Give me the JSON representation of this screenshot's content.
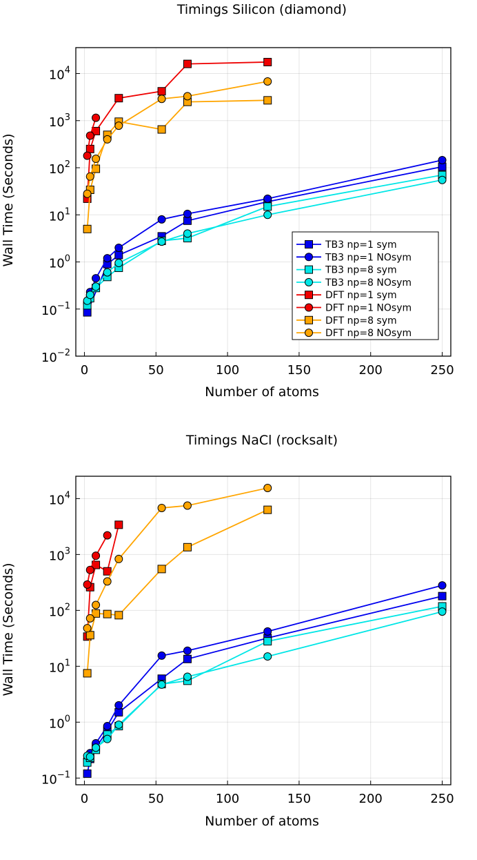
{
  "chart_data": [
    {
      "type": "line",
      "title": "Timings Silicon (diamond)",
      "xlabel": "Number of atoms",
      "ylabel": "Wall Time (Seconds)",
      "yscale": "log",
      "xlim": [
        -6,
        256
      ],
      "ylim_exp": [
        -2,
        4.55
      ],
      "xticks": [
        0,
        50,
        100,
        150,
        200,
        250
      ],
      "yticks_exp": [
        -2,
        -1,
        0,
        1,
        2,
        3,
        4
      ],
      "legend_position": "bottom-right",
      "series": [
        {
          "name": "TB3 np=1 sym",
          "color": "#0000ee",
          "marker": "square",
          "x": [
            2,
            16,
            24,
            54,
            72,
            128,
            250
          ],
          "y": [
            0.085,
            0.9,
            1.4,
            3.5,
            7.5,
            19,
            105
          ]
        },
        {
          "name": "TB3 np=1 NOsym",
          "color": "#0000ee",
          "marker": "circle",
          "x": [
            2,
            4,
            8,
            16,
            24,
            54,
            72,
            128,
            250
          ],
          "y": [
            0.13,
            0.23,
            0.45,
            1.2,
            2.0,
            8.0,
            10.5,
            22,
            145
          ]
        },
        {
          "name": "TB3 np=8 sym",
          "color": "#00e6e6",
          "marker": "square",
          "x": [
            2,
            4,
            8,
            16,
            24,
            54,
            72,
            128,
            250
          ],
          "y": [
            0.12,
            0.17,
            0.28,
            0.48,
            0.75,
            2.8,
            3.2,
            15,
            70
          ]
        },
        {
          "name": "TB3 np=8 NOsym",
          "color": "#00e6e6",
          "marker": "circle",
          "x": [
            2,
            4,
            8,
            16,
            24,
            54,
            72,
            128,
            250
          ],
          "y": [
            0.15,
            0.2,
            0.3,
            0.6,
            0.95,
            2.7,
            4.0,
            10,
            55
          ]
        },
        {
          "name": "DFT np=1 sym",
          "color": "#ee0000",
          "marker": "square",
          "x": [
            2,
            4,
            8,
            24,
            54,
            72,
            128
          ],
          "y": [
            22,
            250,
            600,
            3000,
            4200,
            16000,
            17500
          ]
        },
        {
          "name": "DFT np=1 NOsym",
          "color": "#ee0000",
          "marker": "circle",
          "x": [
            2,
            4,
            8
          ],
          "y": [
            180,
            480,
            1150
          ]
        },
        {
          "name": "DFT np=8 sym",
          "color": "#ffa500",
          "marker": "square",
          "x": [
            2,
            4,
            8,
            16,
            24,
            54,
            72,
            128
          ],
          "y": [
            5,
            34,
            95,
            500,
            950,
            650,
            2500,
            2700
          ]
        },
        {
          "name": "DFT np=8 NOsym",
          "color": "#ffa500",
          "marker": "circle",
          "x": [
            2,
            4,
            8,
            16,
            24,
            54,
            72,
            128
          ],
          "y": [
            28,
            65,
            155,
            400,
            780,
            2900,
            3300,
            6800
          ]
        }
      ]
    },
    {
      "type": "line",
      "title": "Timings NaCl (rocksalt)",
      "xlabel": "Number of atoms",
      "ylabel": "Wall Time (Seconds)",
      "yscale": "log",
      "xlim": [
        -6,
        256
      ],
      "ylim_exp": [
        -1.12,
        4.4
      ],
      "xticks": [
        0,
        50,
        100,
        150,
        200,
        250
      ],
      "yticks_exp": [
        -1,
        0,
        1,
        2,
        3,
        4
      ],
      "series": [
        {
          "name": "TB3 np=1 sym",
          "color": "#0000ee",
          "marker": "square",
          "x": [
            2,
            4,
            8,
            16,
            24,
            54,
            72,
            128,
            250
          ],
          "y": [
            0.12,
            0.22,
            0.35,
            0.7,
            1.5,
            6.0,
            13.5,
            32,
            180
          ]
        },
        {
          "name": "TB3 np=1 NOsym",
          "color": "#0000ee",
          "marker": "circle",
          "x": [
            2,
            4,
            8,
            16,
            24,
            54,
            72,
            128,
            250
          ],
          "y": [
            0.22,
            0.28,
            0.42,
            0.85,
            2.0,
            15.5,
            19,
            42,
            280
          ]
        },
        {
          "name": "TB3 np=8 sym",
          "color": "#00e6e6",
          "marker": "square",
          "x": [
            2,
            4,
            8,
            16,
            24,
            54,
            72,
            128,
            250
          ],
          "y": [
            0.19,
            0.23,
            0.32,
            0.6,
            0.85,
            4.8,
            5.5,
            28,
            118
          ]
        },
        {
          "name": "TB3 np=8 NOsym",
          "color": "#00e6e6",
          "marker": "circle",
          "x": [
            2,
            4,
            8,
            16,
            24,
            54,
            72,
            128,
            250
          ],
          "y": [
            0.25,
            0.24,
            0.35,
            0.5,
            0.9,
            4.7,
            6.5,
            15,
            95
          ]
        },
        {
          "name": "DFT np=1 sym",
          "color": "#ee0000",
          "marker": "square",
          "x": [
            2,
            4,
            8,
            16,
            24
          ],
          "y": [
            34,
            260,
            650,
            500,
            3400
          ]
        },
        {
          "name": "DFT np=1 NOsym",
          "color": "#ee0000",
          "marker": "circle",
          "x": [
            2,
            4,
            8,
            16
          ],
          "y": [
            290,
            530,
            950,
            2200
          ]
        },
        {
          "name": "DFT np=8 sym",
          "color": "#ffa500",
          "marker": "square",
          "x": [
            2,
            4,
            8,
            16,
            24,
            54,
            72,
            128
          ],
          "y": [
            7.5,
            36,
            88,
            86,
            82,
            550,
            1350,
            6300
          ]
        },
        {
          "name": "DFT np=8 NOsym",
          "color": "#ffa500",
          "marker": "circle",
          "x": [
            2,
            4,
            8,
            16,
            24,
            54,
            72,
            128
          ],
          "y": [
            48,
            72,
            125,
            330,
            830,
            6800,
            7500,
            15500
          ]
        }
      ]
    }
  ]
}
